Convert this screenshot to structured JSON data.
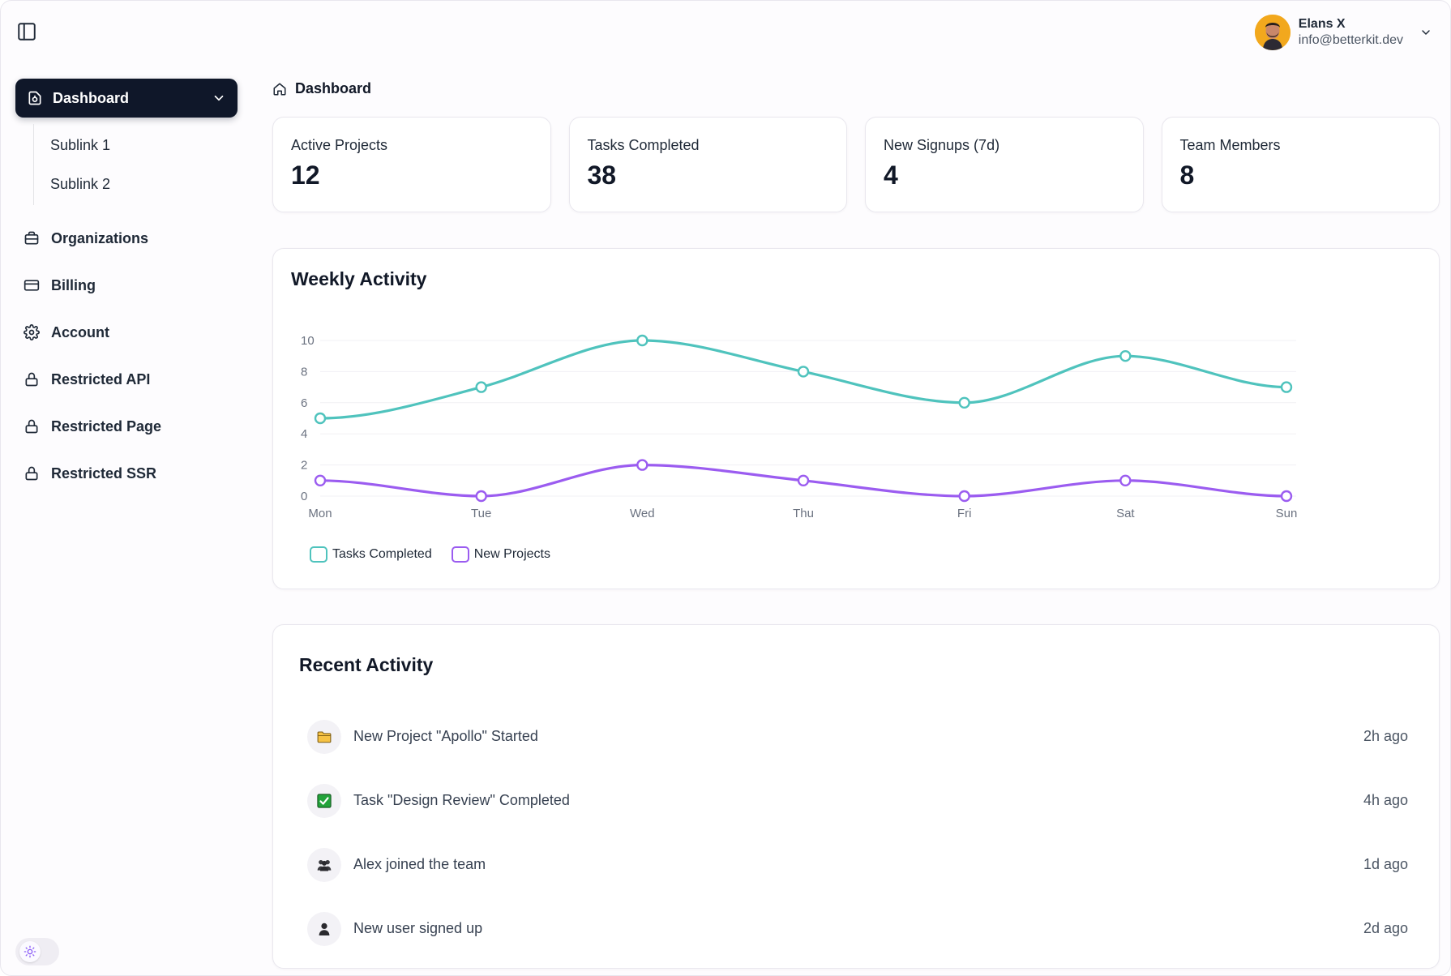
{
  "user": {
    "name": "Elans X",
    "email": "info@betterkit.dev"
  },
  "sidebar": {
    "active": {
      "label": "Dashboard",
      "icon": "dashboard-icon"
    },
    "sublinks": [
      {
        "label": "Sublink 1"
      },
      {
        "label": "Sublink 2"
      }
    ],
    "items": [
      {
        "label": "Organizations",
        "icon": "briefcase-icon"
      },
      {
        "label": "Billing",
        "icon": "credit-card-icon"
      },
      {
        "label": "Account",
        "icon": "gear-icon"
      },
      {
        "label": "Restricted API",
        "icon": "lock-icon"
      },
      {
        "label": "Restricted Page",
        "icon": "lock-icon"
      },
      {
        "label": "Restricted SSR",
        "icon": "lock-icon"
      }
    ]
  },
  "breadcrumb": {
    "label": "Dashboard",
    "icon": "home-icon"
  },
  "stats": [
    {
      "label": "Active Projects",
      "value": "12"
    },
    {
      "label": "Tasks Completed",
      "value": "38"
    },
    {
      "label": "New Signups (7d)",
      "value": "4"
    },
    {
      "label": "Team Members",
      "value": "8"
    }
  ],
  "chart": {
    "title": "Weekly Activity"
  },
  "chart_data": {
    "type": "line",
    "title": "Weekly Activity",
    "categories": [
      "Mon",
      "Tue",
      "Wed",
      "Thu",
      "Fri",
      "Sat",
      "Sun"
    ],
    "yticks": [
      "0",
      "2",
      "4",
      "6",
      "8",
      "10"
    ],
    "ylim": [
      0,
      10
    ],
    "series": [
      {
        "name": "Tasks Completed",
        "color": "#4fc3bd",
        "values": [
          5,
          7,
          10,
          8,
          6,
          9,
          7
        ]
      },
      {
        "name": "New Projects",
        "color": "#9b5cf0",
        "values": [
          1,
          0,
          2,
          1,
          0,
          1,
          0
        ]
      }
    ],
    "legend": "bottom-left"
  },
  "activity": {
    "title": "Recent Activity",
    "items": [
      {
        "text": "New Project \"Apollo\" Started",
        "time": "2h ago",
        "icon": "folder-icon"
      },
      {
        "text": "Task \"Design Review\" Completed",
        "time": "4h ago",
        "icon": "check-box-icon"
      },
      {
        "text": "Alex joined the team",
        "time": "1d ago",
        "icon": "team-icon"
      },
      {
        "text": "New user signed up",
        "time": "2d ago",
        "icon": "user-icon"
      }
    ]
  },
  "colors": {
    "accent_dark": "#0f1729",
    "teal": "#4fc3bd",
    "purple": "#9b5cf0"
  }
}
